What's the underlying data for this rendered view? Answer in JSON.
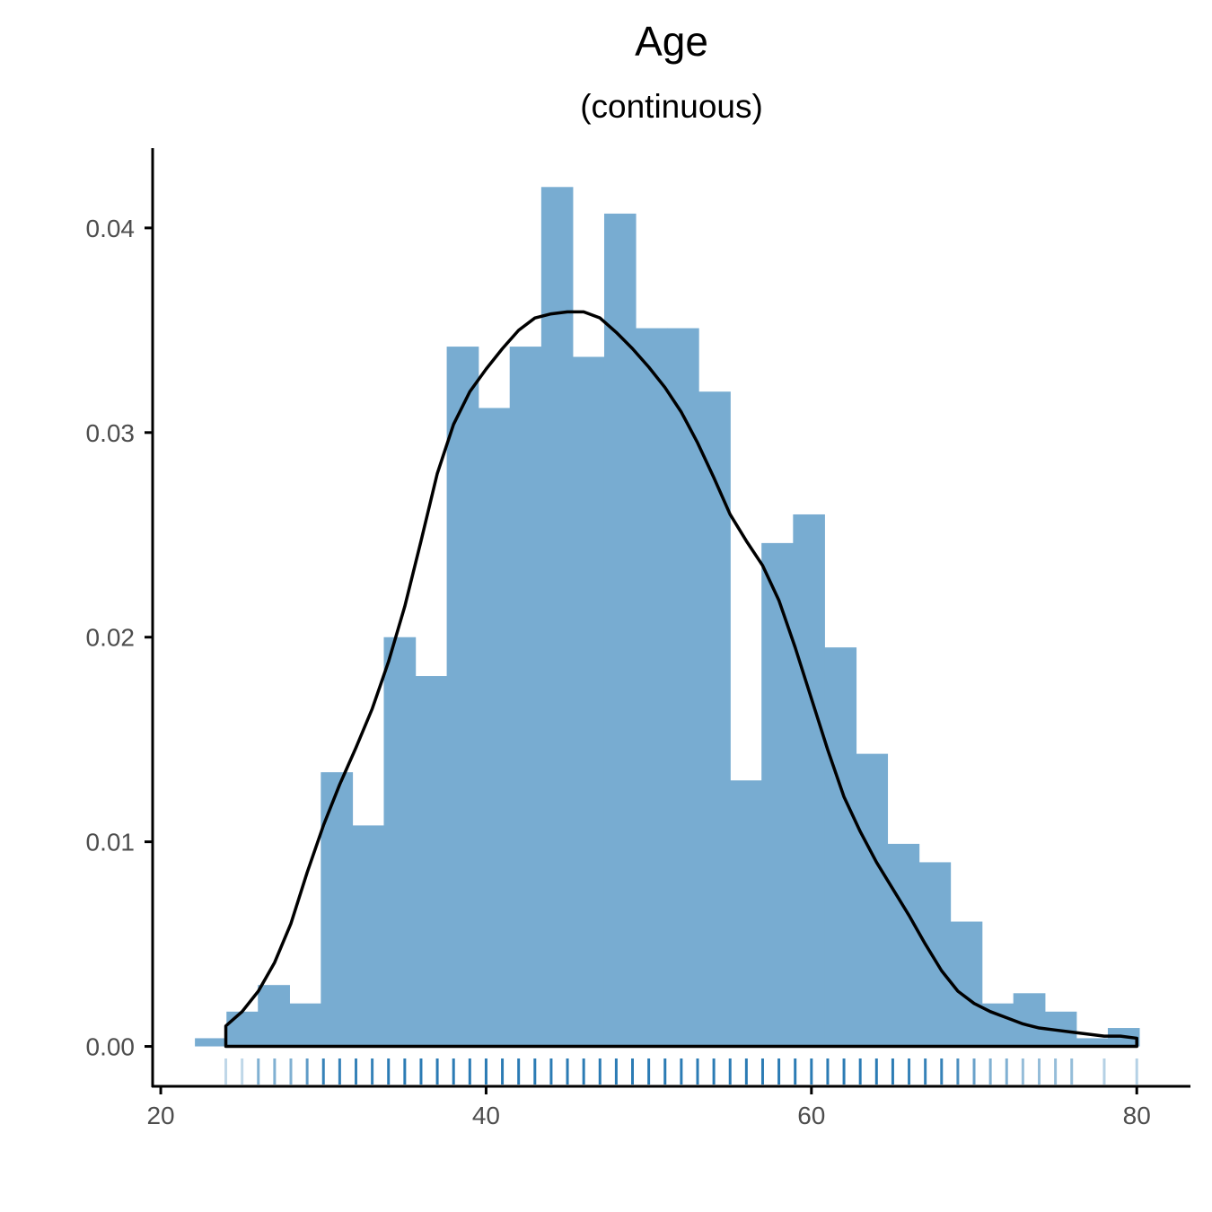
{
  "chart_data": {
    "type": "bar",
    "title": "Age",
    "subtitle": "(continuous)",
    "xlabel": "",
    "ylabel": "",
    "xlim": [
      19.5,
      83.3
    ],
    "ylim": [
      -0.00195,
      0.0439
    ],
    "x_ticks": [
      20,
      40,
      60,
      80
    ],
    "x_tick_labels": [
      "20",
      "40",
      "60",
      "80"
    ],
    "y_ticks": [
      0,
      0.01,
      0.02,
      0.03,
      0.04
    ],
    "y_tick_labels": [
      "0.00",
      "0.01",
      "0.02",
      "0.03",
      "0.04"
    ],
    "grid": false,
    "legend": "none",
    "histogram": {
      "bin_edges": [
        22.1,
        24.04,
        25.97,
        27.91,
        29.84,
        31.78,
        33.71,
        35.65,
        37.58,
        39.52,
        41.45,
        43.39,
        45.32,
        47.26,
        49.19,
        51.13,
        53.06,
        55.0,
        56.93,
        58.87,
        60.8,
        62.74,
        64.67,
        66.61,
        68.54,
        70.48,
        72.41,
        74.35,
        76.28,
        78.22,
        80.15
      ],
      "density": [
        0.0004,
        0.0017,
        0.003,
        0.0021,
        0.0134,
        0.0108,
        0.02,
        0.0181,
        0.0342,
        0.0312,
        0.0342,
        0.042,
        0.0337,
        0.0407,
        0.0351,
        0.0351,
        0.032,
        0.013,
        0.0246,
        0.026,
        0.0195,
        0.0143,
        0.0099,
        0.009,
        0.0061,
        0.0021,
        0.0026,
        0.0017,
        0.0004,
        0.0009
      ]
    },
    "density_curve": {
      "x": [
        24,
        25,
        26,
        27,
        28,
        29,
        30,
        31,
        32,
        33,
        34,
        35,
        36,
        37,
        38,
        39,
        40,
        41,
        42,
        43,
        44,
        45,
        46,
        47,
        48,
        49,
        50,
        51,
        52,
        53,
        54,
        55,
        56,
        57,
        58,
        59,
        60,
        61,
        62,
        63,
        64,
        65,
        66,
        67,
        68,
        69,
        70,
        71,
        72,
        73,
        74,
        75,
        76,
        77,
        78,
        79,
        80
      ],
      "y": [
        0.001,
        0.0017,
        0.0027,
        0.0041,
        0.006,
        0.0085,
        0.0108,
        0.0128,
        0.0146,
        0.0165,
        0.0188,
        0.0215,
        0.0247,
        0.028,
        0.0304,
        0.032,
        0.0331,
        0.0341,
        0.035,
        0.0356,
        0.0358,
        0.0359,
        0.0359,
        0.0356,
        0.0349,
        0.0341,
        0.0332,
        0.0322,
        0.031,
        0.0295,
        0.0278,
        0.026,
        0.0247,
        0.0235,
        0.0218,
        0.0195,
        0.017,
        0.0145,
        0.0122,
        0.0105,
        0.009,
        0.0077,
        0.0064,
        0.005,
        0.0037,
        0.0027,
        0.0021,
        0.0017,
        0.0014,
        0.0011,
        0.0009,
        0.0008,
        0.0007,
        0.0006,
        0.0005,
        0.0005,
        0.0004
      ]
    },
    "rug": {
      "x": [
        24,
        25,
        26,
        27,
        28,
        29,
        30,
        31,
        32,
        33,
        34,
        35,
        36,
        37,
        38,
        39,
        40,
        41,
        42,
        43,
        44,
        45,
        46,
        47,
        48,
        49,
        50,
        51,
        52,
        53,
        54,
        55,
        56,
        57,
        58,
        59,
        60,
        61,
        62,
        63,
        64,
        65,
        66,
        67,
        68,
        69,
        70,
        71,
        72,
        73,
        74,
        75,
        76,
        78,
        80
      ],
      "opacity": [
        0.3,
        0.3,
        0.6,
        0.6,
        0.6,
        0.75,
        0.95,
        0.95,
        0.95,
        0.95,
        1,
        1,
        1,
        1,
        1,
        1,
        1,
        1,
        1,
        1,
        1,
        1,
        1,
        1,
        1,
        1,
        1,
        1,
        1,
        1,
        1,
        1,
        1,
        1,
        1,
        1,
        1,
        1,
        1,
        1,
        1,
        1,
        0.95,
        0.95,
        0.95,
        0.85,
        0.7,
        0.6,
        0.6,
        0.5,
        0.5,
        0.5,
        0.5,
        0.35,
        0.35
      ]
    },
    "colors": {
      "bars": "#78acd1",
      "curve": "#000000",
      "rug": "#2b7bb4",
      "axis": "#000000",
      "tick_label": "#4d4d4d"
    }
  }
}
